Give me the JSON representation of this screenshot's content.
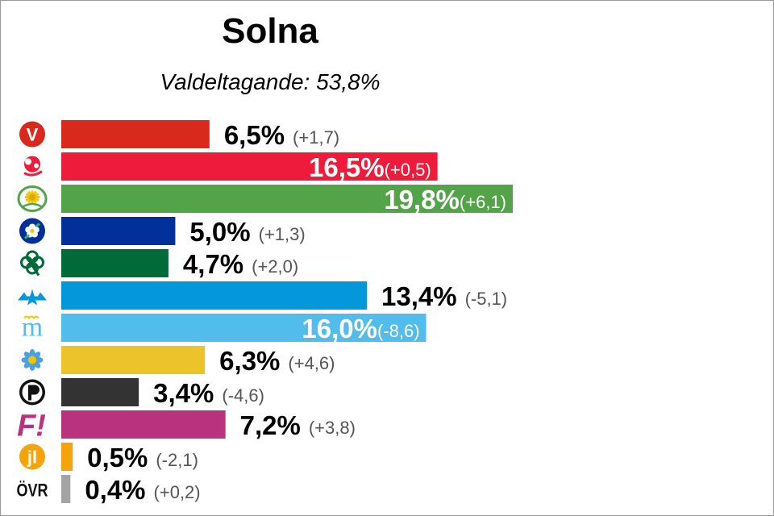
{
  "chart_data": {
    "type": "bar",
    "orientation": "horizontal",
    "title": "Solna",
    "subtitle": "Valdeltagande: 53,8%",
    "categories": [
      "V",
      "S",
      "MP",
      "KD",
      "C",
      "L",
      "M",
      "SD",
      "PP",
      "FI",
      "JL",
      "ÖVR"
    ],
    "values": [
      6.5,
      16.5,
      19.8,
      5.0,
      4.7,
      13.4,
      16.0,
      6.3,
      3.4,
      7.2,
      0.5,
      0.4
    ],
    "value_labels": [
      "6,5%",
      "16,5%",
      "19,8%",
      "5,0%",
      "4,7%",
      "13,4%",
      "16,0%",
      "6,3%",
      "3,4%",
      "7,2%",
      "0,5%",
      "0,4%"
    ],
    "change_labels": [
      "(+1,7)",
      "(+0,5)",
      "(+6,1)",
      "(+1,3)",
      "(+2,0)",
      "(-5,1)",
      "(-8,6)",
      "(+4,6)",
      "(-4,6)",
      "(+3,8)",
      "(-2,1)",
      "(+0,2)"
    ],
    "colors": [
      "#da291c",
      "#ee1c3a",
      "#53a448",
      "#02309a",
      "#006a38",
      "#0497d9",
      "#52bdec",
      "#edc32b",
      "#333333",
      "#b8327e",
      "#f5a30a",
      "#a3a3a3"
    ],
    "label_inside": [
      false,
      true,
      true,
      false,
      false,
      false,
      true,
      false,
      false,
      false,
      false,
      false
    ],
    "icons": [
      "v-logo-icon",
      "s-rose-icon",
      "mp-dandelion-icon",
      "kd-flower-icon",
      "c-clover-icon",
      "l-star-icon",
      "m-logo-icon",
      "sd-anemone-icon",
      "pp-pirate-icon",
      "fi-logo-icon",
      "jl-logo-icon",
      "ovr-text-icon"
    ],
    "ovr_text": "ÖVR",
    "fi_text": "F!",
    "jl_text": "jl",
    "v_text": "V",
    "m_text": "m",
    "xlim": [
      0,
      19.8
    ]
  }
}
